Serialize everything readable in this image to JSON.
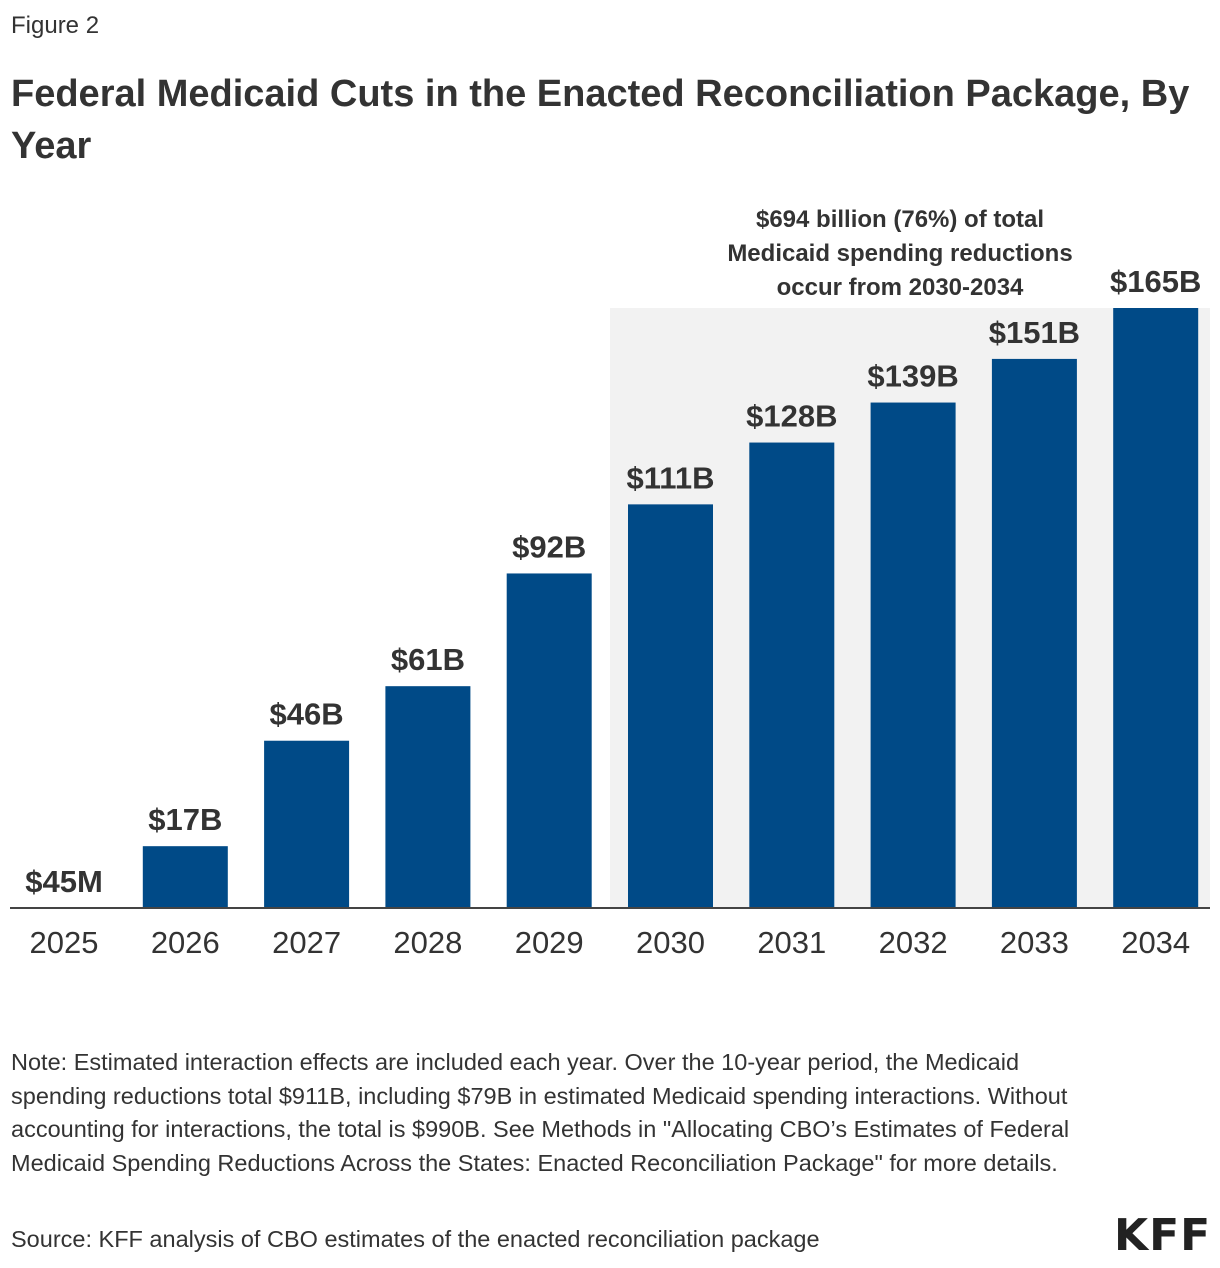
{
  "figure_label": "Figure 2",
  "chart_data": {
    "type": "bar",
    "title": "Federal Medicaid Cuts in the Enacted Reconciliation Package, By Year",
    "xlabel": "",
    "ylabel": "",
    "unit": "billions of dollars",
    "categories": [
      "2025",
      "2026",
      "2027",
      "2028",
      "2029",
      "2030",
      "2031",
      "2032",
      "2033",
      "2034"
    ],
    "values": [
      0.045,
      17,
      46,
      61,
      92,
      111,
      128,
      139,
      151,
      165
    ],
    "data_labels": [
      "$45M",
      "$17B",
      "$46B",
      "$61B",
      "$92B",
      "$111B",
      "$128B",
      "$139B",
      "$151B",
      "$165B"
    ],
    "ylim": [
      0,
      165
    ],
    "grid": false,
    "bar_color": "#004A87",
    "highlight": {
      "from": "2030",
      "to": "2034",
      "color": "#F2F2F2",
      "annotation": [
        "$694 billion (76%) of total",
        "Medicaid spending reductions",
        "occur from 2030-2034"
      ]
    }
  },
  "note": "Note: Estimated interaction effects are included each year. Over the 10-year period, the Medicaid spending reductions total $911B, including $79B in estimated Medicaid spending interactions. Without accounting for interactions, the total is $990B. See Methods in \"Allocating CBO’s Estimates of Federal Medicaid Spending Reductions Across the States: Enacted Reconciliation Package\" for more details.",
  "source": "Source: KFF analysis of CBO estimates of the enacted reconciliation package",
  "logo": "KFF"
}
